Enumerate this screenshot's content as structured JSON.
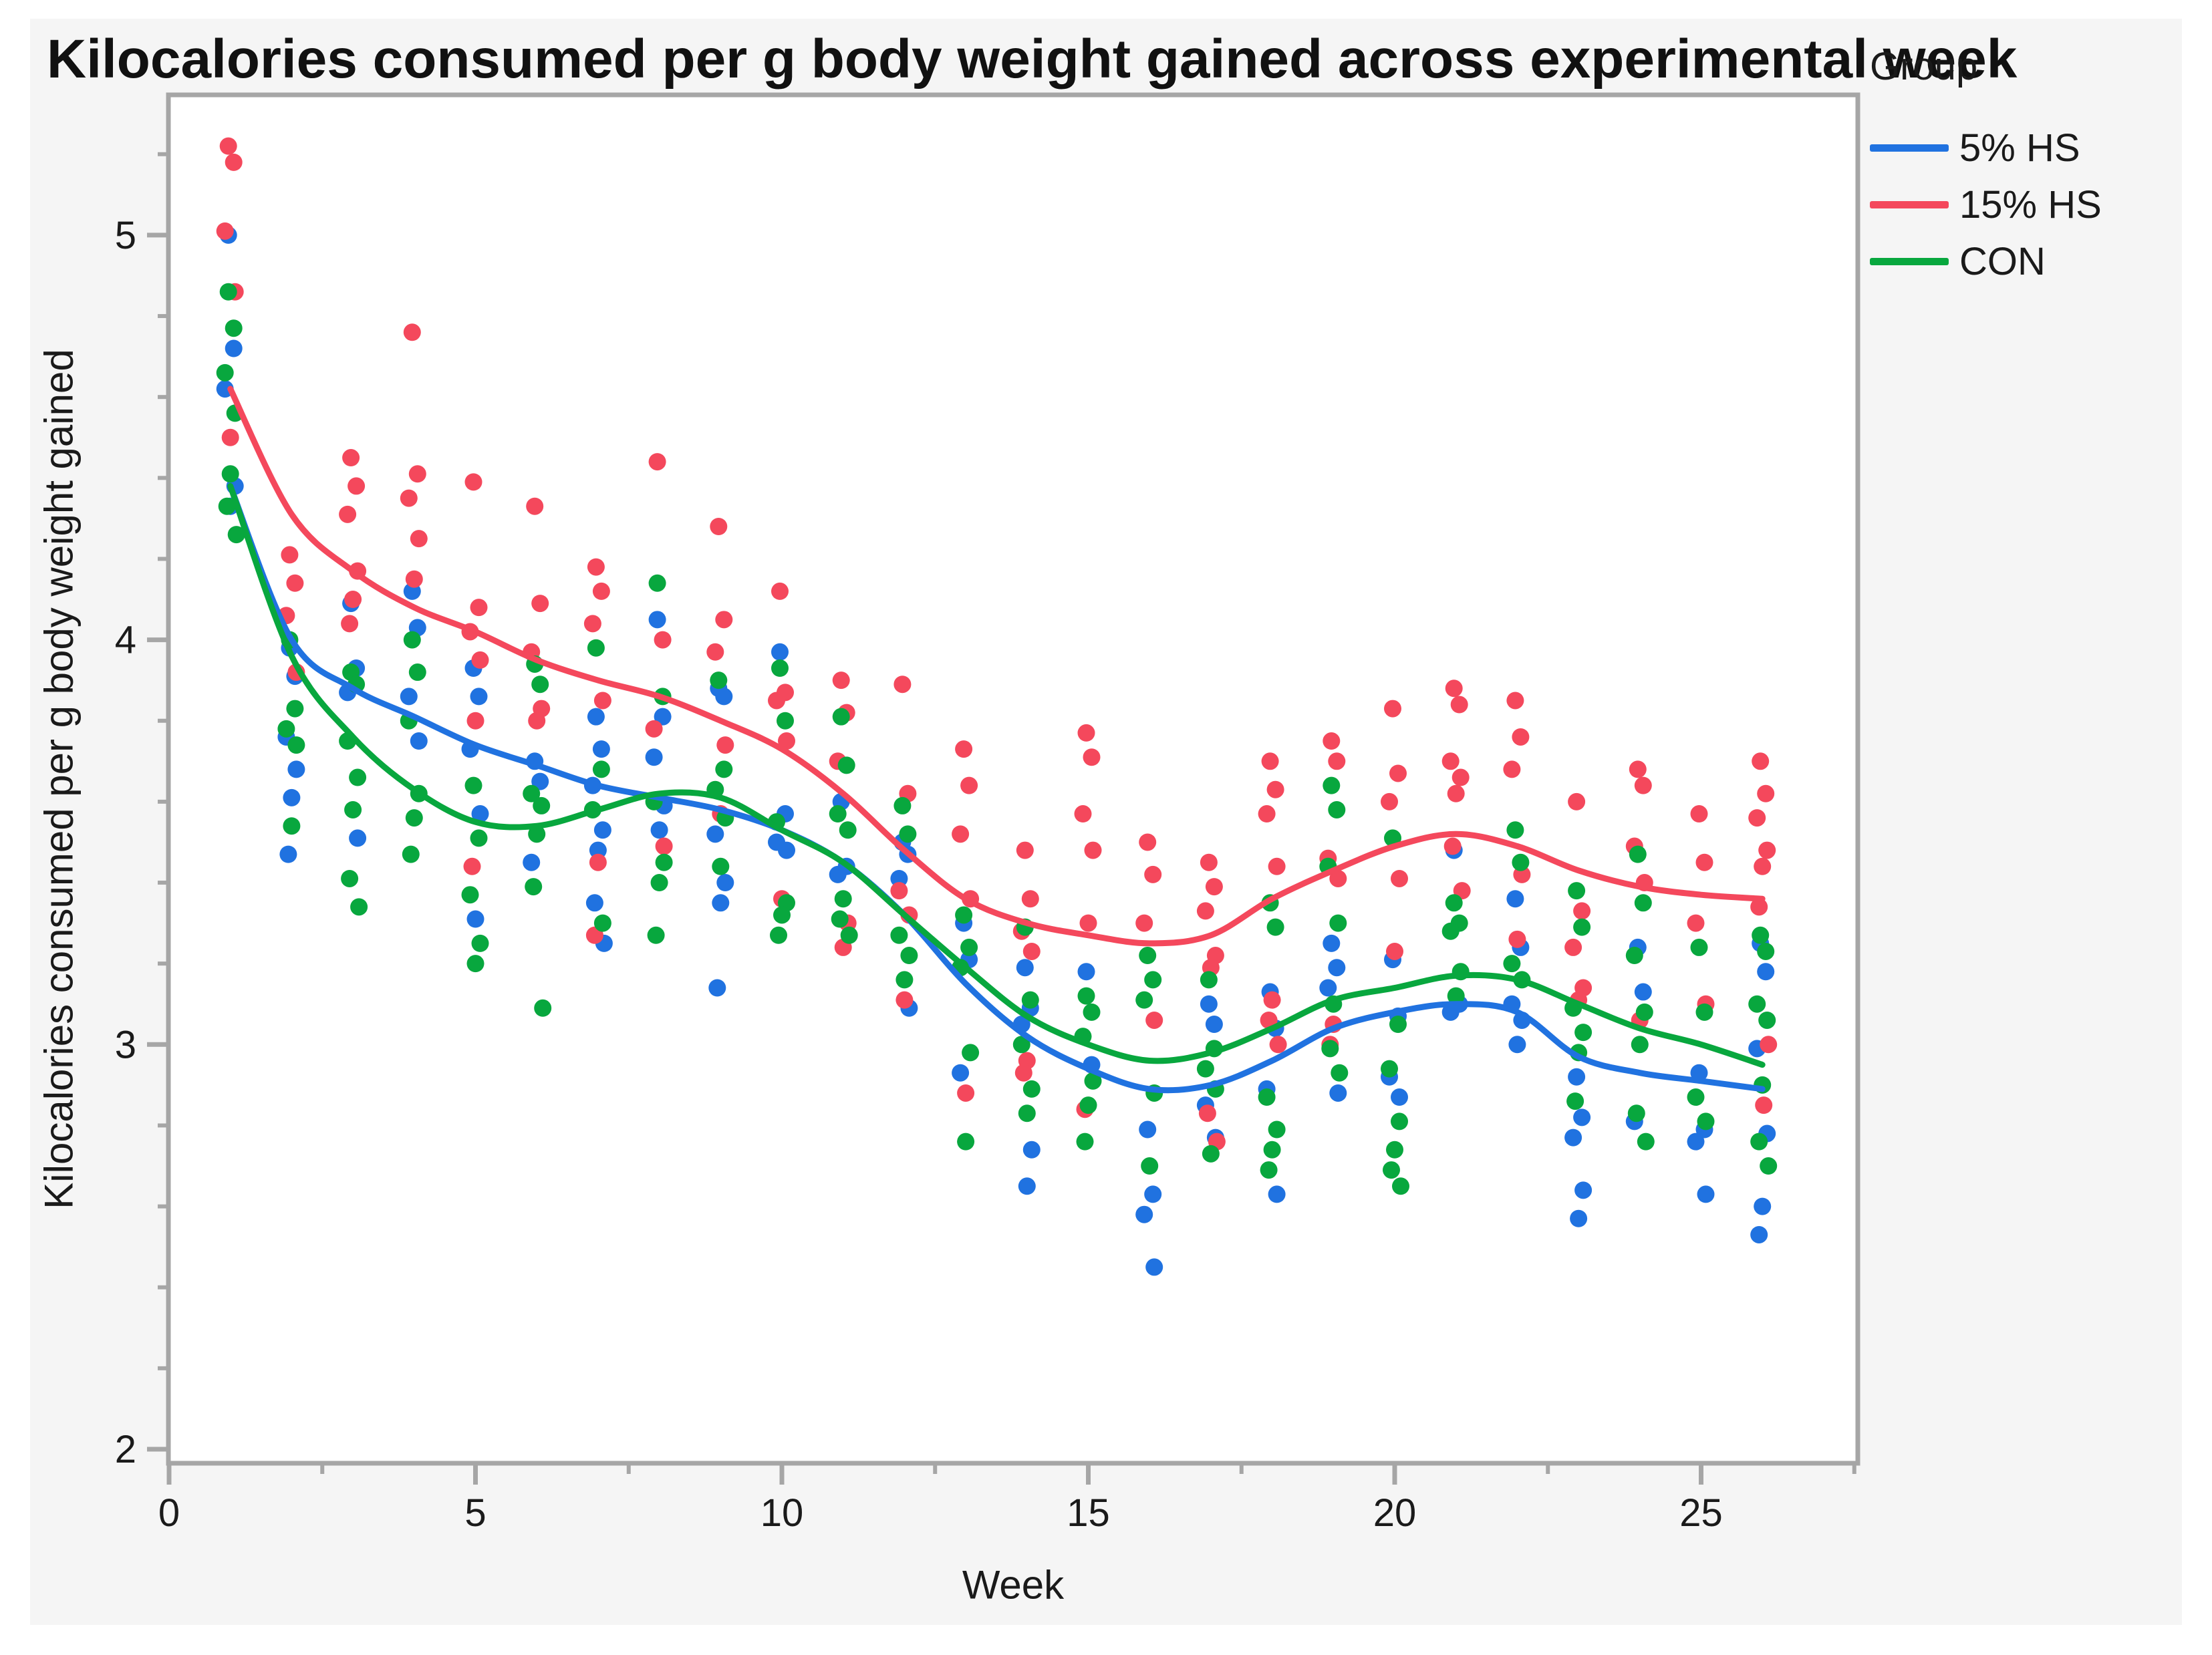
{
  "chart_data": {
    "type": "scatter",
    "title": "Kilocalories consumed per g body weight gained across experimental week",
    "xlabel": "Week",
    "ylabel": "Kilocalories consumed per g body weight gained",
    "legend_title": "Group",
    "legend_position": "top-right",
    "grid": false,
    "xlim": [
      0,
      27.6
    ],
    "ylim": [
      1.96,
      5.35
    ],
    "x_ticks": [
      0,
      5,
      10,
      15,
      20,
      25
    ],
    "x_minor_ticks": [
      2.5,
      7.5,
      12.5,
      17.5,
      22.5,
      27.5
    ],
    "y_ticks": [
      2,
      3,
      4,
      5
    ],
    "y_minor_ticks": [
      2.2,
      2.4,
      2.6,
      2.8,
      3.2,
      3.4,
      3.6,
      3.8,
      4.2,
      4.4,
      4.6,
      4.8,
      5.2
    ],
    "axis_color": "#a6a6a6",
    "series": [
      {
        "name": "5% HS",
        "color": "#2072e0",
        "points_by_week": {
          "1": [
            5.0,
            4.72,
            4.62,
            4.38,
            4.33
          ],
          "2": [
            3.98,
            3.91,
            3.76,
            3.68,
            3.61,
            3.47
          ],
          "3": [
            4.09,
            3.93,
            3.87,
            3.51
          ],
          "4": [
            4.12,
            4.03,
            3.86,
            3.75
          ],
          "5": [
            3.93,
            3.86,
            3.73,
            3.57,
            3.31
          ],
          "6": [
            3.7,
            3.65,
            3.45
          ],
          "7": [
            3.81,
            3.73,
            3.64,
            3.53,
            3.48,
            3.35,
            3.25
          ],
          "8": [
            4.05,
            3.81,
            3.71,
            3.59,
            3.53
          ],
          "9": [
            3.88,
            3.86,
            3.52,
            3.4,
            3.35,
            3.14
          ],
          "10": [
            3.97,
            3.57,
            3.5,
            3.48
          ],
          "11": [
            3.6,
            3.44,
            3.42
          ],
          "12": [
            3.5,
            3.47,
            3.41,
            3.09
          ],
          "13": [
            3.3,
            3.21,
            2.93
          ],
          "14": [
            3.19,
            3.09,
            3.05,
            2.74,
            2.65
          ],
          "15": [
            3.18,
            2.95
          ],
          "16": [
            2.79,
            2.63,
            2.58,
            2.45
          ],
          "17": [
            3.1,
            3.05,
            2.85,
            2.77
          ],
          "18": [
            3.13,
            3.04,
            2.89,
            2.63
          ],
          "19": [
            3.25,
            3.19,
            3.14,
            2.88
          ],
          "20": [
            3.21,
            3.07,
            2.92,
            2.87
          ],
          "21": [
            3.48,
            3.1,
            3.08
          ],
          "22": [
            3.36,
            3.24,
            3.1,
            3.06,
            3.0
          ],
          "23": [
            2.92,
            2.82,
            2.77,
            2.64,
            2.57
          ],
          "24": [
            3.24,
            3.13,
            2.81
          ],
          "25": [
            2.93,
            2.79,
            2.76,
            2.63
          ],
          "26": [
            3.25,
            3.18,
            2.99,
            2.78,
            2.6,
            2.53
          ]
        }
      },
      {
        "name": "15% HS",
        "color": "#f4485c",
        "points_by_week": {
          "1": [
            5.22,
            5.18,
            5.01,
            4.86,
            4.5
          ],
          "2": [
            4.21,
            4.14,
            4.06,
            3.92
          ],
          "3": [
            4.45,
            4.38,
            4.31,
            4.17,
            4.1,
            4.04
          ],
          "4": [
            4.76,
            4.41,
            4.35,
            4.25,
            4.15
          ],
          "5": [
            4.39,
            4.08,
            4.02,
            3.95,
            3.8,
            3.44
          ],
          "6": [
            4.33,
            4.09,
            3.97,
            3.83,
            3.8
          ],
          "7": [
            4.18,
            4.12,
            4.04,
            3.85,
            3.45,
            3.27
          ],
          "8": [
            4.44,
            4.0,
            3.78,
            3.49
          ],
          "9": [
            4.28,
            4.05,
            3.97,
            3.74,
            3.57
          ],
          "10": [
            4.12,
            3.87,
            3.85,
            3.75,
            3.36
          ],
          "11": [
            3.9,
            3.82,
            3.7,
            3.3,
            3.24
          ],
          "12": [
            3.89,
            3.62,
            3.38,
            3.32,
            3.11
          ],
          "13": [
            3.73,
            3.64,
            3.52,
            3.36,
            2.88
          ],
          "14": [
            3.48,
            3.36,
            3.28,
            3.23,
            2.96,
            2.93
          ],
          "15": [
            3.77,
            3.71,
            3.57,
            3.48,
            3.3,
            2.84
          ],
          "16": [
            3.5,
            3.42,
            3.3,
            3.06
          ],
          "17": [
            3.45,
            3.39,
            3.33,
            3.22,
            3.19,
            2.83,
            2.76
          ],
          "18": [
            3.7,
            3.63,
            3.57,
            3.44,
            3.11,
            3.06,
            3.0
          ],
          "19": [
            3.75,
            3.7,
            3.46,
            3.41,
            3.05,
            3.0
          ],
          "20": [
            3.83,
            3.67,
            3.6,
            3.41,
            3.23
          ],
          "21": [
            3.88,
            3.84,
            3.7,
            3.66,
            3.62,
            3.49,
            3.38
          ],
          "22": [
            3.85,
            3.76,
            3.68,
            3.42,
            3.26
          ],
          "23": [
            3.6,
            3.33,
            3.24,
            3.14,
            3.11
          ],
          "24": [
            3.68,
            3.64,
            3.49,
            3.4,
            3.06
          ],
          "25": [
            3.57,
            3.45,
            3.3,
            3.1
          ],
          "26": [
            3.7,
            3.62,
            3.56,
            3.48,
            3.44,
            3.34,
            3.0,
            2.85
          ]
        }
      },
      {
        "name": "CON",
        "color": "#08a73e",
        "points_by_week": {
          "1": [
            4.86,
            4.77,
            4.66,
            4.56,
            4.41,
            4.33,
            4.26
          ],
          "2": [
            4.0,
            3.83,
            3.78,
            3.74,
            3.54
          ],
          "3": [
            3.92,
            3.89,
            3.75,
            3.66,
            3.58,
            3.41,
            3.34
          ],
          "4": [
            4.0,
            3.92,
            3.8,
            3.62,
            3.56,
            3.47
          ],
          "5": [
            3.64,
            3.51,
            3.37,
            3.25,
            3.2
          ],
          "6": [
            3.94,
            3.89,
            3.62,
            3.59,
            3.52,
            3.39,
            3.09
          ],
          "7": [
            3.98,
            3.68,
            3.58,
            3.3
          ],
          "8": [
            4.14,
            3.86,
            3.6,
            3.45,
            3.4,
            3.27
          ],
          "9": [
            3.9,
            3.68,
            3.63,
            3.56,
            3.44
          ],
          "10": [
            3.93,
            3.8,
            3.55,
            3.35,
            3.32,
            3.27
          ],
          "11": [
            3.81,
            3.69,
            3.57,
            3.53,
            3.36,
            3.31,
            3.27
          ],
          "12": [
            3.59,
            3.52,
            3.27,
            3.22,
            3.16
          ],
          "13": [
            3.32,
            3.24,
            3.19,
            2.98,
            2.76
          ],
          "14": [
            3.29,
            3.11,
            3.0,
            2.89,
            2.83
          ],
          "15": [
            3.12,
            3.08,
            3.02,
            2.91,
            2.85,
            2.76
          ],
          "16": [
            3.22,
            3.16,
            3.11,
            2.88,
            2.7
          ],
          "17": [
            3.16,
            2.99,
            2.94,
            2.89,
            2.73
          ],
          "18": [
            3.35,
            3.29,
            2.87,
            2.79,
            2.74,
            2.69
          ],
          "19": [
            3.64,
            3.58,
            3.44,
            3.3,
            3.1,
            2.99,
            2.93
          ],
          "20": [
            3.51,
            3.05,
            2.94,
            2.81,
            2.74,
            2.69,
            2.65
          ],
          "21": [
            3.35,
            3.3,
            3.28,
            3.18,
            3.12
          ],
          "22": [
            3.53,
            3.45,
            3.2,
            3.16
          ],
          "23": [
            3.38,
            3.29,
            3.09,
            3.03,
            2.98,
            2.86
          ],
          "24": [
            3.47,
            3.35,
            3.22,
            3.08,
            3.0,
            2.83,
            2.76
          ],
          "25": [
            3.24,
            3.08,
            2.87,
            2.81
          ],
          "26": [
            3.27,
            3.23,
            3.1,
            3.06,
            2.9,
            2.76,
            2.7
          ]
        }
      }
    ],
    "smoothers": [
      {
        "name": "5% HS",
        "color": "#2072e0",
        "x": [
          1,
          2,
          3,
          4,
          5,
          6,
          7,
          8,
          9,
          10,
          11,
          12,
          13,
          14,
          15,
          16,
          17,
          18,
          19,
          20,
          21,
          22,
          23,
          24,
          25,
          26
        ],
        "y": [
          4.38,
          4.0,
          3.88,
          3.81,
          3.74,
          3.69,
          3.64,
          3.61,
          3.58,
          3.53,
          3.45,
          3.32,
          3.15,
          3.02,
          2.94,
          2.89,
          2.9,
          2.96,
          3.04,
          3.08,
          3.1,
          3.08,
          2.97,
          2.93,
          2.91,
          2.89
        ]
      },
      {
        "name": "CON",
        "color": "#08a73e",
        "x": [
          1,
          2,
          3,
          4,
          5,
          6,
          7,
          8,
          9,
          10,
          11,
          12,
          13,
          14,
          15,
          16,
          17,
          18,
          19,
          20,
          21,
          22,
          23,
          24,
          25,
          26
        ],
        "y": [
          4.38,
          3.96,
          3.76,
          3.63,
          3.55,
          3.54,
          3.58,
          3.62,
          3.61,
          3.53,
          3.45,
          3.32,
          3.19,
          3.07,
          3.0,
          2.96,
          2.98,
          3.04,
          3.11,
          3.14,
          3.17,
          3.16,
          3.1,
          3.04,
          3.0,
          2.95
        ]
      },
      {
        "name": "15% HS",
        "color": "#f4485c",
        "x": [
          1,
          2,
          3,
          4,
          5,
          6,
          7,
          8,
          9,
          10,
          11,
          12,
          13,
          14,
          15,
          16,
          17,
          18,
          19,
          20,
          21,
          22,
          23,
          24,
          25,
          26
        ],
        "y": [
          4.62,
          4.31,
          4.17,
          4.08,
          4.02,
          3.95,
          3.9,
          3.86,
          3.8,
          3.73,
          3.62,
          3.48,
          3.36,
          3.3,
          3.27,
          3.25,
          3.27,
          3.36,
          3.43,
          3.49,
          3.52,
          3.49,
          3.43,
          3.39,
          3.37,
          3.36
        ]
      }
    ]
  }
}
